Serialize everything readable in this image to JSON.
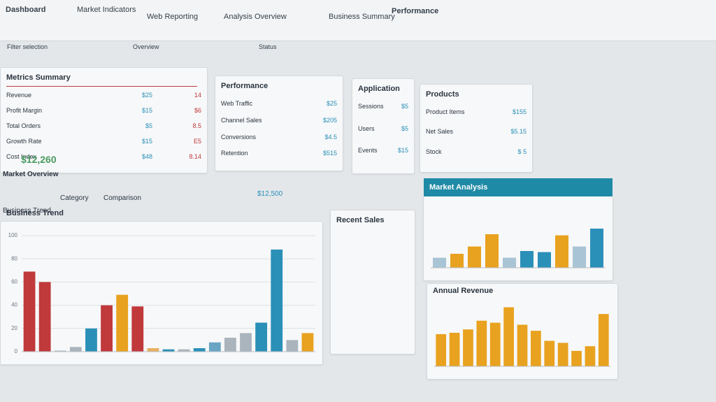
{
  "nav": {
    "tabs": [
      "Dashboard",
      "Market Indicators",
      "Web Reporting",
      "Analysis Overview",
      "Business Summary"
    ],
    "title": "Performance"
  },
  "filters": [
    "Filter selection",
    "Overview",
    "Status"
  ],
  "cards": [
    {
      "title": "Metrics Summary",
      "rows": [
        [
          "Revenue",
          "$25",
          "14"
        ],
        [
          "Profit Margin",
          "$15",
          "$6"
        ],
        [
          "Total Orders",
          "$5",
          "8.5"
        ],
        [
          "Growth Rate",
          "$15",
          "E5"
        ],
        [
          "Cost Index",
          "$48",
          "8.14"
        ]
      ]
    },
    {
      "title": "Performance",
      "rows": [
        [
          "Web Traffic",
          "$25"
        ],
        [
          "Channel Sales",
          "$205"
        ],
        [
          "Conversions",
          "$4.5"
        ],
        [
          "Retention",
          "$515"
        ]
      ]
    },
    {
      "title": "Application",
      "rows": [
        [
          "Sessions",
          "$5"
        ],
        [
          "Users",
          "$5"
        ],
        [
          "Events",
          "$15"
        ]
      ]
    },
    {
      "title": "Products",
      "rows": [
        [
          "Product Items",
          "$155"
        ],
        [
          "Net Sales",
          "$5.15"
        ],
        [
          "Stock",
          "$ 5"
        ]
      ]
    }
  ],
  "section": {
    "title": "Market Overview",
    "tabs": [
      "Category",
      "Comparison"
    ],
    "total": "$12,500",
    "sub": "Business Trend",
    "side": "Recent Sales",
    "side_value": "$12,260"
  },
  "charts": [
    {
      "title": "Business Trend",
      "ylim": [
        0,
        100
      ],
      "yticks": [
        0,
        20,
        40,
        60,
        80,
        100
      ],
      "values": [
        69,
        60,
        1,
        4,
        20,
        40,
        49,
        39,
        3,
        2,
        2,
        3,
        8,
        12,
        16,
        25,
        88,
        10,
        16
      ],
      "colors": [
        "#c0393b",
        "#c0393b",
        "#b8c0c8",
        "#a9b4bd",
        "#2a90b8",
        "#c0393b",
        "#e8a21f",
        "#c0393b",
        "#e8b060",
        "#2a90b8",
        "#a9b4bd",
        "#2a90b8",
        "#6aa5c4",
        "#a9b4bd",
        "#a9b4bd",
        "#2a90b8",
        "#2a90b8",
        "#a9b4bd",
        "#e8a21f"
      ]
    },
    {
      "title": "Market Analysis",
      "ylim": [
        0,
        100
      ],
      "values": [
        18,
        25,
        38,
        60,
        18,
        30,
        28,
        58,
        38,
        70
      ],
      "colors": [
        "#a9c4d4",
        "#e8a21f",
        "#e8a21f",
        "#e8a21f",
        "#a9c4d4",
        "#2a90b8",
        "#2a90b8",
        "#e8a21f",
        "#a9c4d4",
        "#2a90b8"
      ]
    },
    {
      "title": "Annual Revenue",
      "ylim": [
        0,
        100
      ],
      "values": [
        48,
        50,
        55,
        68,
        65,
        88,
        62,
        53,
        38,
        35,
        23,
        30,
        78
      ],
      "color": "#e8a21f"
    }
  ]
}
